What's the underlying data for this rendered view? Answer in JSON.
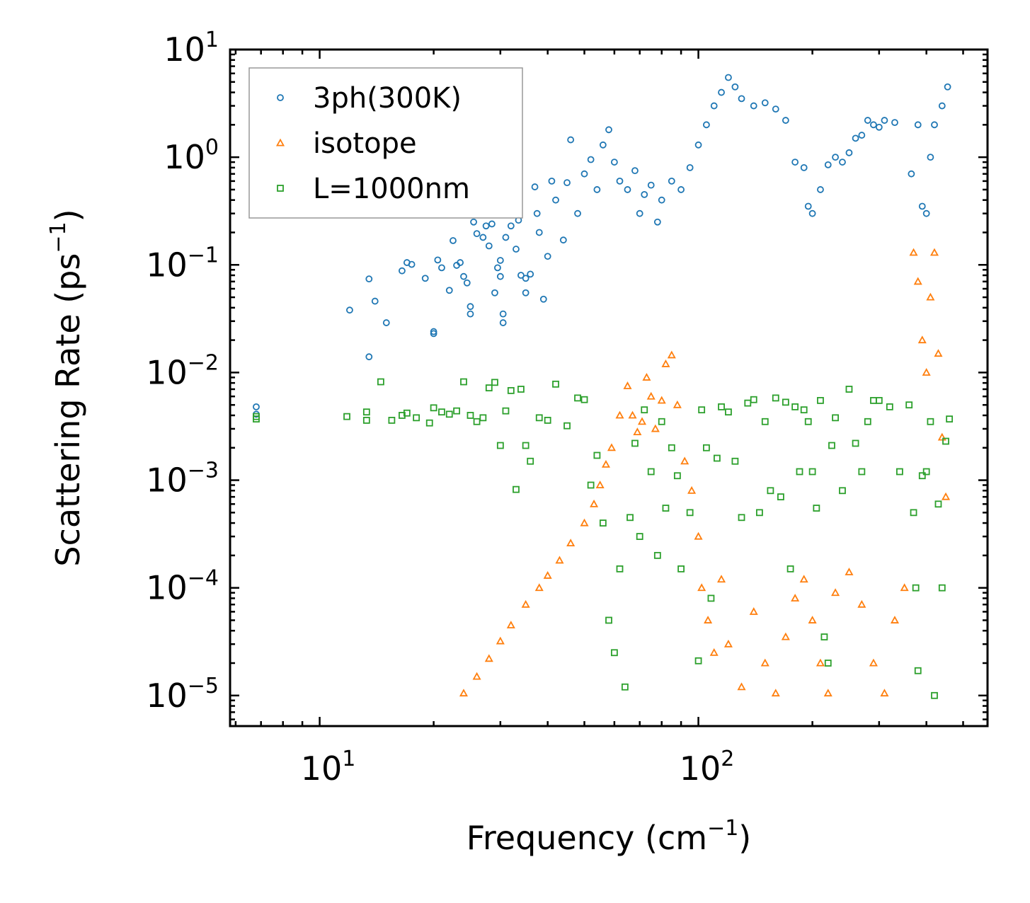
{
  "chart_data": {
    "type": "scatter",
    "title": "",
    "xlabel": "Frequency (cm",
    "xlabel_sup": "−1",
    "xlabel_end": ")",
    "ylabel": "Scattering Rate (ps",
    "ylabel_sup": "−1",
    "ylabel_end": ")",
    "xscale": "log",
    "yscale": "log",
    "xlim": [
      5.8,
      580
    ],
    "ylim": [
      5.2e-06,
      10
    ],
    "x_ticks": [
      {
        "value": 10,
        "base": "10",
        "exp": "1"
      },
      {
        "value": 100,
        "base": "10",
        "exp": "2"
      }
    ],
    "y_ticks": [
      {
        "value": 10,
        "base": "10",
        "exp": "1"
      },
      {
        "value": 1,
        "base": "10",
        "exp": "0"
      },
      {
        "value": 0.1,
        "base": "10",
        "exp": "−1"
      },
      {
        "value": 0.01,
        "base": "10",
        "exp": "−2"
      },
      {
        "value": 0.001,
        "base": "10",
        "exp": "−3"
      },
      {
        "value": 0.0001,
        "base": "10",
        "exp": "−4"
      },
      {
        "value": 1e-05,
        "base": "10",
        "exp": "−5"
      }
    ],
    "legend_position": "top-left",
    "series": [
      {
        "name": "3ph(300K)",
        "marker": "circle",
        "color": "#1f77b4",
        "points": [
          [
            6.8,
            0.0048
          ],
          [
            6.8,
            0.0041
          ],
          [
            12,
            0.038
          ],
          [
            13.5,
            0.074
          ],
          [
            13.5,
            0.014
          ],
          [
            14,
            0.046
          ],
          [
            15,
            0.029
          ],
          [
            16.5,
            0.088
          ],
          [
            17,
            0.105
          ],
          [
            17.5,
            0.101
          ],
          [
            19,
            0.075
          ],
          [
            20,
            0.023
          ],
          [
            20,
            0.024
          ],
          [
            20.5,
            0.111
          ],
          [
            21,
            0.094
          ],
          [
            22,
            0.058
          ],
          [
            22.5,
            0.168
          ],
          [
            23,
            0.099
          ],
          [
            23.5,
            0.105
          ],
          [
            24,
            0.078
          ],
          [
            24.5,
            0.068
          ],
          [
            25,
            0.041
          ],
          [
            25,
            0.035
          ],
          [
            25.5,
            0.25
          ],
          [
            26,
            0.195
          ],
          [
            27,
            0.18
          ],
          [
            27.5,
            0.23
          ],
          [
            28,
            0.15
          ],
          [
            28.5,
            0.24
          ],
          [
            29,
            0.055
          ],
          [
            29.5,
            0.094
          ],
          [
            30,
            0.11
          ],
          [
            30,
            0.078
          ],
          [
            30.5,
            0.035
          ],
          [
            30.5,
            0.029
          ],
          [
            31,
            0.18
          ],
          [
            32,
            0.23
          ],
          [
            33,
            0.14
          ],
          [
            33.5,
            0.26
          ],
          [
            34,
            0.08
          ],
          [
            35,
            0.055
          ],
          [
            35,
            0.075
          ],
          [
            36,
            0.082
          ],
          [
            37,
            0.53
          ],
          [
            37.5,
            0.3
          ],
          [
            38,
            0.2
          ],
          [
            39,
            0.048
          ],
          [
            40,
            0.12
          ],
          [
            41,
            0.6
          ],
          [
            42,
            0.4
          ],
          [
            44,
            0.17
          ],
          [
            45,
            0.58
          ],
          [
            46,
            1.45
          ],
          [
            48,
            0.3
          ],
          [
            50,
            0.7
          ],
          [
            52,
            0.95
          ],
          [
            54,
            0.5
          ],
          [
            56,
            1.3
          ],
          [
            58,
            1.8
          ],
          [
            60,
            0.9
          ],
          [
            62,
            0.6
          ],
          [
            65,
            0.5
          ],
          [
            68,
            0.75
          ],
          [
            70,
            0.3
          ],
          [
            72,
            0.45
          ],
          [
            75,
            0.55
          ],
          [
            78,
            0.25
          ],
          [
            80,
            0.4
          ],
          [
            85,
            0.6
          ],
          [
            90,
            0.5
          ],
          [
            95,
            0.8
          ],
          [
            100,
            1.3
          ],
          [
            105,
            2.0
          ],
          [
            110,
            3.0
          ],
          [
            115,
            4.0
          ],
          [
            120,
            5.5
          ],
          [
            125,
            4.5
          ],
          [
            130,
            3.5
          ],
          [
            140,
            3.0
          ],
          [
            150,
            3.2
          ],
          [
            160,
            2.8
          ],
          [
            170,
            2.2
          ],
          [
            180,
            0.9
          ],
          [
            190,
            0.8
          ],
          [
            195,
            0.35
          ],
          [
            200,
            0.3
          ],
          [
            210,
            0.5
          ],
          [
            220,
            0.85
          ],
          [
            230,
            1.0
          ],
          [
            240,
            0.9
          ],
          [
            250,
            1.1
          ],
          [
            260,
            1.5
          ],
          [
            270,
            1.6
          ],
          [
            280,
            2.2
          ],
          [
            290,
            2.0
          ],
          [
            300,
            1.9
          ],
          [
            310,
            2.2
          ],
          [
            330,
            2.1
          ],
          [
            365,
            0.7
          ],
          [
            380,
            2.0
          ],
          [
            390,
            0.35
          ],
          [
            400,
            0.3
          ],
          [
            410,
            1.0
          ],
          [
            420,
            2.0
          ],
          [
            440,
            3.0
          ],
          [
            455,
            4.5
          ]
        ]
      },
      {
        "name": "isotope",
        "marker": "triangle",
        "color": "#ff7f0e",
        "points": [
          [
            24,
            1.05e-05
          ],
          [
            26,
            1.5e-05
          ],
          [
            28,
            2.2e-05
          ],
          [
            30,
            3.2e-05
          ],
          [
            32,
            4.5e-05
          ],
          [
            35,
            7e-05
          ],
          [
            38,
            0.0001
          ],
          [
            40,
            0.00013
          ],
          [
            43,
            0.00018
          ],
          [
            46,
            0.00026
          ],
          [
            50,
            0.0004
          ],
          [
            53,
            0.0006
          ],
          [
            55,
            0.0009
          ],
          [
            57,
            0.0014
          ],
          [
            59,
            0.002
          ],
          [
            62,
            0.004
          ],
          [
            65,
            0.0075
          ],
          [
            67,
            0.004
          ],
          [
            69,
            0.0028
          ],
          [
            71,
            0.0035
          ],
          [
            73,
            0.009
          ],
          [
            75,
            0.006
          ],
          [
            77,
            0.003
          ],
          [
            80,
            0.0055
          ],
          [
            82,
            0.012
          ],
          [
            85,
            0.0145
          ],
          [
            88,
            0.005
          ],
          [
            92,
            0.0015
          ],
          [
            96,
            0.0008
          ],
          [
            100,
            0.0003
          ],
          [
            102,
            0.0001
          ],
          [
            106,
            5e-05
          ],
          [
            110,
            2.5e-05
          ],
          [
            115,
            0.00012
          ],
          [
            120,
            3e-05
          ],
          [
            130,
            1.2e-05
          ],
          [
            140,
            6e-05
          ],
          [
            150,
            2e-05
          ],
          [
            160,
            1.05e-05
          ],
          [
            170,
            3.5e-05
          ],
          [
            180,
            8e-05
          ],
          [
            190,
            0.00012
          ],
          [
            200,
            5e-05
          ],
          [
            210,
            2e-05
          ],
          [
            220,
            1.05e-05
          ],
          [
            230,
            9e-05
          ],
          [
            250,
            0.00014
          ],
          [
            270,
            7e-05
          ],
          [
            290,
            2e-05
          ],
          [
            310,
            1.05e-05
          ],
          [
            330,
            5e-05
          ],
          [
            350,
            0.0001
          ],
          [
            370,
            0.13
          ],
          [
            380,
            0.07
          ],
          [
            390,
            0.02
          ],
          [
            400,
            0.01
          ],
          [
            410,
            0.05
          ],
          [
            420,
            0.13
          ],
          [
            430,
            0.015
          ],
          [
            440,
            0.0025
          ],
          [
            450,
            0.0007
          ]
        ]
      },
      {
        "name": "L=1000nm",
        "marker": "square",
        "color": "#2ca02c",
        "points": [
          [
            6.8,
            0.0037
          ],
          [
            6.8,
            0.0039
          ],
          [
            11.8,
            0.0039
          ],
          [
            13.3,
            0.0043
          ],
          [
            13.3,
            0.0036
          ],
          [
            14.5,
            0.0082
          ],
          [
            15.5,
            0.0036
          ],
          [
            16.5,
            0.004
          ],
          [
            17,
            0.0042
          ],
          [
            18,
            0.0038
          ],
          [
            19.5,
            0.0034
          ],
          [
            20,
            0.0047
          ],
          [
            21,
            0.0043
          ],
          [
            22,
            0.0041
          ],
          [
            23,
            0.0044
          ],
          [
            24,
            0.0082
          ],
          [
            25,
            0.004
          ],
          [
            26,
            0.0035
          ],
          [
            27,
            0.0038
          ],
          [
            28,
            0.0072
          ],
          [
            29,
            0.0081
          ],
          [
            30,
            0.0021
          ],
          [
            31,
            0.0044
          ],
          [
            32,
            0.0068
          ],
          [
            33,
            0.00082
          ],
          [
            34,
            0.007
          ],
          [
            35,
            0.0021
          ],
          [
            36,
            0.0015
          ],
          [
            38,
            0.0038
          ],
          [
            40,
            0.0036
          ],
          [
            42,
            0.0078
          ],
          [
            45,
            0.0032
          ],
          [
            48,
            0.0058
          ],
          [
            50,
            0.0056
          ],
          [
            52,
            0.0009
          ],
          [
            54,
            0.0017
          ],
          [
            56,
            0.0004
          ],
          [
            58,
            5e-05
          ],
          [
            60,
            2.5e-05
          ],
          [
            62,
            0.00015
          ],
          [
            64,
            1.2e-05
          ],
          [
            66,
            0.00045
          ],
          [
            68,
            0.0022
          ],
          [
            70,
            0.0003
          ],
          [
            72,
            0.0045
          ],
          [
            75,
            0.0012
          ],
          [
            78,
            0.0002
          ],
          [
            80,
            0.0035
          ],
          [
            82,
            0.00055
          ],
          [
            85,
            0.002
          ],
          [
            88,
            0.0011
          ],
          [
            90,
            0.00015
          ],
          [
            95,
            0.0005
          ],
          [
            100,
            2.1e-05
          ],
          [
            102,
            0.0045
          ],
          [
            105,
            0.002
          ],
          [
            108,
            8e-05
          ],
          [
            112,
            0.0016
          ],
          [
            115,
            0.0048
          ],
          [
            120,
            0.0043
          ],
          [
            125,
            0.0015
          ],
          [
            130,
            0.00045
          ],
          [
            135,
            0.0052
          ],
          [
            140,
            0.0056
          ],
          [
            145,
            0.0005
          ],
          [
            150,
            0.0035
          ],
          [
            155,
            0.0008
          ],
          [
            160,
            0.0058
          ],
          [
            165,
            0.0007
          ],
          [
            170,
            0.0053
          ],
          [
            175,
            0.00015
          ],
          [
            180,
            0.0048
          ],
          [
            185,
            0.0012
          ],
          [
            190,
            0.0045
          ],
          [
            195,
            0.0035
          ],
          [
            200,
            0.0012
          ],
          [
            205,
            0.00055
          ],
          [
            210,
            0.0055
          ],
          [
            215,
            3.5e-05
          ],
          [
            220,
            2e-05
          ],
          [
            225,
            0.0021
          ],
          [
            230,
            0.0038
          ],
          [
            240,
            0.0008
          ],
          [
            250,
            0.007
          ],
          [
            260,
            0.0022
          ],
          [
            270,
            0.0012
          ],
          [
            280,
            0.0035
          ],
          [
            290,
            0.0055
          ],
          [
            300,
            0.0055
          ],
          [
            320,
            0.0048
          ],
          [
            340,
            0.0012
          ],
          [
            360,
            0.005
          ],
          [
            370,
            0.0005
          ],
          [
            375,
            0.0001
          ],
          [
            380,
            1.7e-05
          ],
          [
            390,
            0.0011
          ],
          [
            400,
            0.0012
          ],
          [
            410,
            0.0035
          ],
          [
            420,
            1e-05
          ],
          [
            430,
            0.0006
          ],
          [
            440,
            0.0001
          ],
          [
            450,
            0.0023
          ],
          [
            460,
            0.0037
          ]
        ]
      }
    ]
  }
}
